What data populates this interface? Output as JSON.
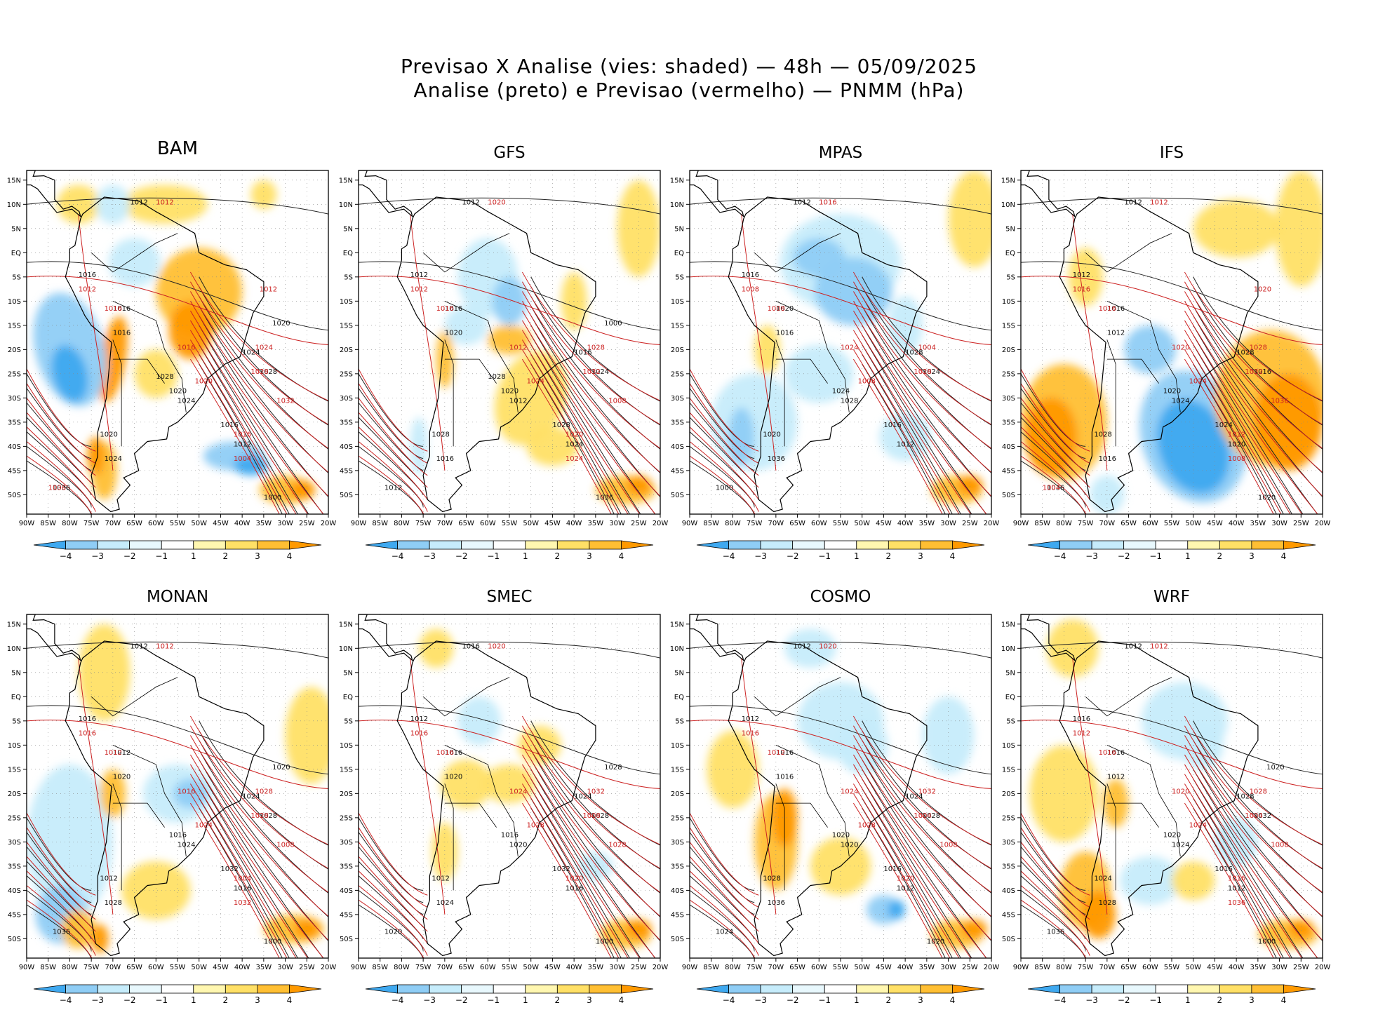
{
  "title_line1": "Previsao X Analise (vies: shaded) — 48h — 05/09/2025",
  "title_line2": "Analise (preto) e Previsao (vermelho) — PNMM (hPa)",
  "lat_labels": [
    "15N",
    "10N",
    "5N",
    "EQ",
    "5S",
    "10S",
    "15S",
    "20S",
    "25S",
    "30S",
    "35S",
    "40S",
    "45S",
    "50S"
  ],
  "lon_labels": [
    "90W",
    "85W",
    "80W",
    "75W",
    "70W",
    "65W",
    "60W",
    "55W",
    "50W",
    "45W",
    "40W",
    "35W",
    "30W",
    "25W",
    "20W"
  ],
  "colorbar_labels": [
    "−4",
    "−3",
    "−2",
    "−1",
    "1",
    "2",
    "3",
    "4"
  ],
  "colorbar_colors": [
    "#3fa9f0",
    "#8fcdf5",
    "#c6ecfb",
    "#e8f8fd",
    "#ffffff",
    "#fff7b0",
    "#ffe066",
    "#ffbf33",
    "#ff9900"
  ],
  "panels": [
    {
      "name": "BAM",
      "pattern": "bam",
      "labels_black": [
        "1012",
        "1016",
        "1016",
        "1016",
        "1020",
        "1024",
        "1024",
        "1028",
        "1016",
        "1012",
        "1020",
        "1024",
        "1036",
        "1000",
        "1020",
        "1028"
      ],
      "labels_red": [
        "1012",
        "1016",
        "1012",
        "1016",
        "1020",
        "1024",
        "1028",
        "1032",
        "1016",
        "1004",
        "1036",
        "1012"
      ]
    },
    {
      "name": "GFS",
      "pattern": "gfs",
      "labels_black": [
        "1012",
        "1012",
        "1016",
        "1020",
        "1020",
        "1012",
        "1016",
        "1024",
        "1028",
        "1024",
        "1028",
        "1016",
        "1012",
        "1036",
        "1000",
        "1028"
      ],
      "labels_red": [
        "1012",
        "1016",
        "1020",
        "1012",
        "1024",
        "1028",
        "1032",
        "1008",
        "1020",
        "1024"
      ]
    },
    {
      "name": "MPAS",
      "pattern": "mpas",
      "labels_black": [
        "1012",
        "1016",
        "1020",
        "1016",
        "1024",
        "1028",
        "1028",
        "1024",
        "1016",
        "1012",
        "1020",
        "1036",
        "1000"
      ],
      "labels_red": [
        "1008",
        "1008",
        "1016",
        "1024",
        "1008",
        "1004",
        "1028"
      ]
    },
    {
      "name": "IFS",
      "pattern": "ifs",
      "labels_black": [
        "1012",
        "1012",
        "1016",
        "1012",
        "1020",
        "1024",
        "1028",
        "1016",
        "1024",
        "1020",
        "1028",
        "1016",
        "1036",
        "1020"
      ],
      "labels_red": [
        "1016",
        "1016",
        "1012",
        "1020",
        "1024",
        "1028",
        "1032",
        "1036",
        "1012",
        "1008",
        "1004",
        "1020"
      ]
    },
    {
      "name": "MONAN",
      "pattern": "monan",
      "labels_black": [
        "1012",
        "1016",
        "1012",
        "1020",
        "1016",
        "1024",
        "1024",
        "1028",
        "1032",
        "1016",
        "1012",
        "1028",
        "1036",
        "1000",
        "1020"
      ],
      "labels_red": [
        "1016",
        "1012",
        "1012",
        "1016",
        "1024",
        "1028",
        "1028",
        "1008",
        "1004",
        "1032"
      ]
    },
    {
      "name": "SMEC",
      "pattern": "smec",
      "labels_black": [
        "1016",
        "1012",
        "1016",
        "1020",
        "1016",
        "1020",
        "1024",
        "1028",
        "1032",
        "1016",
        "1012",
        "1024",
        "1020",
        "1000",
        "1028"
      ],
      "labels_red": [
        "1016",
        "1016",
        "1020",
        "1024",
        "1028",
        "1032",
        "1008",
        "1028",
        "1020"
      ]
    },
    {
      "name": "COSMO",
      "pattern": "cosmo",
      "labels_black": [
        "1012",
        "1012",
        "1016",
        "1016",
        "1020",
        "1020",
        "1024",
        "1028",
        "1016",
        "1012",
        "1028",
        "1036",
        "1024",
        "1020"
      ],
      "labels_red": [
        "1016",
        "1012",
        "1020",
        "1024",
        "1028",
        "1032",
        "1004",
        "1008",
        "1020"
      ]
    },
    {
      "name": "WRF",
      "pattern": "wrf",
      "labels_black": [
        "1012",
        "1016",
        "1016",
        "1012",
        "1020",
        "1024",
        "1028",
        "1032",
        "1016",
        "1012",
        "1024",
        "1028",
        "1036",
        "1000",
        "1020"
      ],
      "labels_red": [
        "1012",
        "1016",
        "1012",
        "1020",
        "1024",
        "1028",
        "1004",
        "1008",
        "1016",
        "1036"
      ]
    }
  ]
}
